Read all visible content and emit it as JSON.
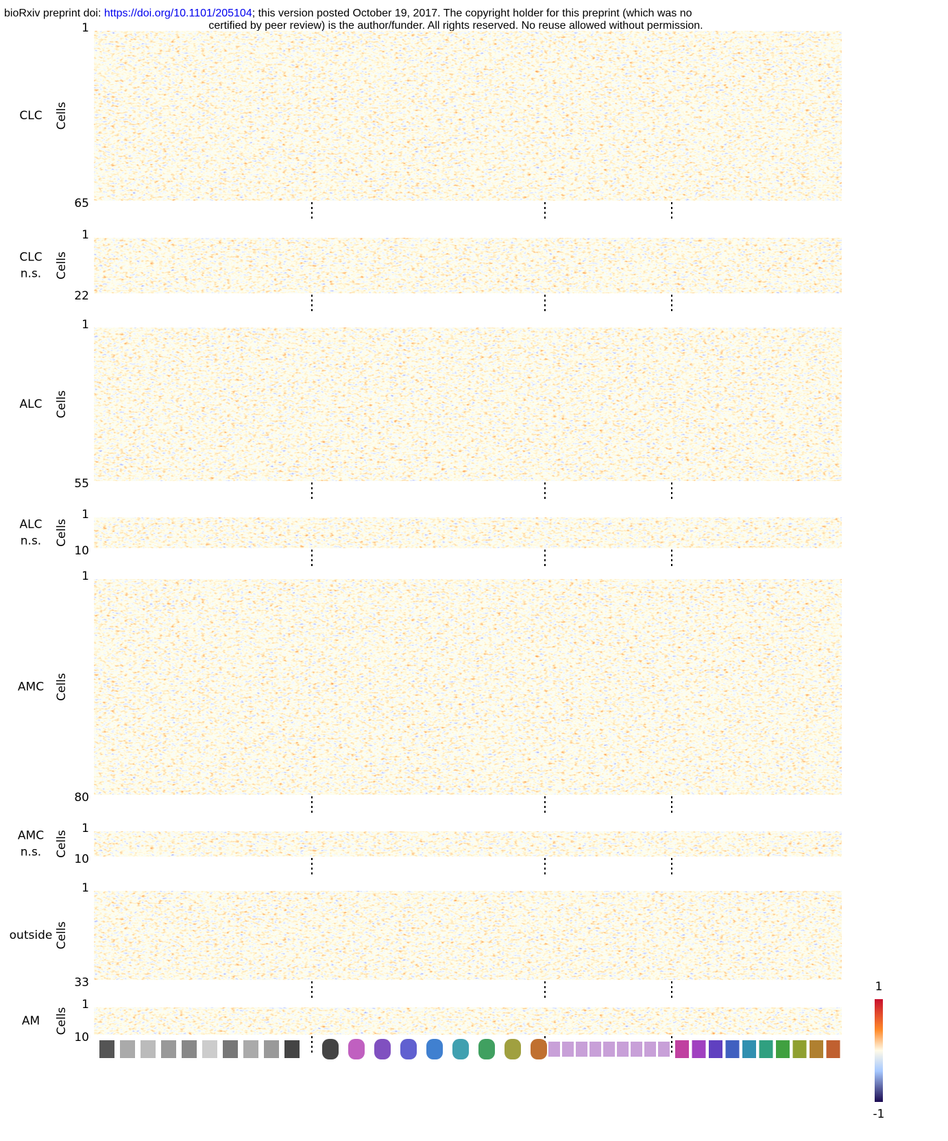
{
  "header": {
    "prefix": "bioRxiv preprint doi: ",
    "link": "https://doi.org/10.1101/205104",
    "rest": "; this version posted October 19, 2017. The copyright holder for this preprint (which was no",
    "line2": "certified by peer review) is the author/funder. All rights reserved. No reuse allowed without permission."
  },
  "axis_label": "Cells",
  "panels": [
    {
      "label": [
        "CLC"
      ],
      "first": "1",
      "last": "65"
    },
    {
      "label": [
        "CLC",
        "n.s."
      ],
      "first": "1",
      "last": "22"
    },
    {
      "label": [
        "ALC"
      ],
      "first": "1",
      "last": "55"
    },
    {
      "label": [
        "ALC",
        "n.s."
      ],
      "first": "1",
      "last": "10"
    },
    {
      "label": [
        "AMC"
      ],
      "first": "1",
      "last": "80"
    },
    {
      "label": [
        "AMC",
        "n.s."
      ],
      "first": "1",
      "last": "10"
    },
    {
      "label": [
        "outside"
      ],
      "first": "1",
      "last": "33"
    },
    {
      "label": [
        "AM"
      ],
      "first": "1",
      "last": "10"
    }
  ],
  "colorbar": {
    "max": "1",
    "min": "-1"
  }
}
